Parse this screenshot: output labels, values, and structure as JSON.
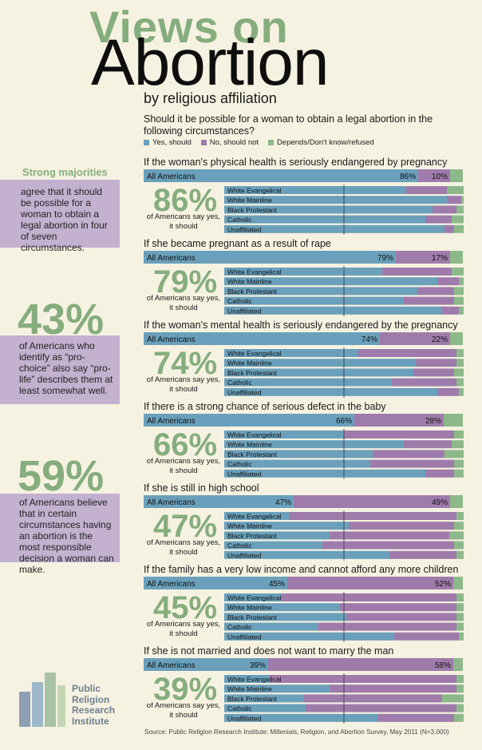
{
  "header": {
    "title_line1": "Views on",
    "title_line2": "Abortion",
    "subtitle": "by religious affiliation",
    "question": "Should it be possible for a woman to obtain a legal abortion in the following circumstances?"
  },
  "legend": {
    "yes": "Yes, should",
    "no": "No, should not",
    "depends": "Depends/Don't know/refused"
  },
  "colors": {
    "yes": "#6aa0bb",
    "no": "#9f7bab",
    "depends": "#8db98a",
    "accent_green": "#86ad7d",
    "side_box": "#c3b1cf",
    "background": "#f6f2e2"
  },
  "sidebar": {
    "fact1_head": "Strong majorities",
    "fact1_text": "agree that it should be possible for a woman to obtain a legal abortion in four of seven circumstances.",
    "fact2_pct": "43%",
    "fact2_text": "of Americans who identify as “pro-choice” also say “pro-life” describes them at least somewhat well.",
    "fact3_pct": "59%",
    "fact3_text": "of Americans believe that in certain circumstances having an abortion is the most responsible decision a woman can make."
  },
  "caption": "of Americans say yes, it should",
  "logo": {
    "line1": "Public",
    "line2": "Religion",
    "line3": "Research",
    "line4": "Institute"
  },
  "source": "Source: Public Religion Research Institute; Millenials, Religion, and Abortion Survey, May 2011 (N=3,000)",
  "chart_data": {
    "type": "bar",
    "stacked": true,
    "orientation": "horizontal",
    "stack_order": [
      "Yes, should",
      "No, should not",
      "Depends/Don't know/refused"
    ],
    "groups": [
      "White Evangelical",
      "White Mainline",
      "Black Protestant",
      "Catholic",
      "Unaffiliated"
    ],
    "total_label": "All Americans",
    "sections": [
      {
        "title": "If the woman's physical health is seriously endangered by pregnancy",
        "big": "86%",
        "all": {
          "yes": 86,
          "no": 10,
          "dep": 4,
          "yes_label": "86%",
          "no_label": "10%"
        },
        "rows": [
          {
            "yes": 76,
            "no": 17,
            "dep": 7
          },
          {
            "yes": 93,
            "no": 6,
            "dep": 1
          },
          {
            "yes": 87,
            "no": 10,
            "dep": 3
          },
          {
            "yes": 84,
            "no": 11,
            "dep": 5
          },
          {
            "yes": 92,
            "no": 4,
            "dep": 4
          }
        ]
      },
      {
        "title": "If she became pregnant as a result of rape",
        "big": "79%",
        "all": {
          "yes": 79,
          "no": 17,
          "dep": 4,
          "yes_label": "79%",
          "no_label": "17%"
        },
        "rows": [
          {
            "yes": 66,
            "no": 29,
            "dep": 5
          },
          {
            "yes": 89,
            "no": 9,
            "dep": 2
          },
          {
            "yes": 81,
            "no": 15,
            "dep": 4
          },
          {
            "yes": 75,
            "no": 21,
            "dep": 4
          },
          {
            "yes": 91,
            "no": 7,
            "dep": 2
          }
        ]
      },
      {
        "title": "If the woman's mental health is seriously endangered by the pregnancy",
        "big": "74%",
        "all": {
          "yes": 74,
          "no": 22,
          "dep": 4,
          "yes_label": "74%",
          "no_label": "22%"
        },
        "rows": [
          {
            "yes": 56,
            "no": 41,
            "dep": 3
          },
          {
            "yes": 80,
            "no": 17,
            "dep": 3
          },
          {
            "yes": 79,
            "no": 17,
            "dep": 4
          },
          {
            "yes": 70,
            "no": 27,
            "dep": 3
          },
          {
            "yes": 89,
            "no": 9,
            "dep": 2
          }
        ]
      },
      {
        "title": "If there is a strong chance of serious defect in the baby",
        "big": "66%",
        "all": {
          "yes": 66,
          "no": 28,
          "dep": 6,
          "yes_label": "66%",
          "no_label": "28%"
        },
        "rows": [
          {
            "yes": 50,
            "no": 46,
            "dep": 4
          },
          {
            "yes": 75,
            "no": 20,
            "dep": 5
          },
          {
            "yes": 62,
            "no": 30,
            "dep": 8
          },
          {
            "yes": 61,
            "no": 35,
            "dep": 4
          },
          {
            "yes": 84,
            "no": 12,
            "dep": 4
          }
        ]
      },
      {
        "title": "If she is still in high school",
        "big": "47%",
        "all": {
          "yes": 47,
          "no": 49,
          "dep": 4,
          "yes_label": "47%",
          "no_label": "49%"
        },
        "rows": [
          {
            "yes": 27,
            "no": 70,
            "dep": 3
          },
          {
            "yes": 52,
            "no": 44,
            "dep": 4
          },
          {
            "yes": 44,
            "no": 50,
            "dep": 6
          },
          {
            "yes": 41,
            "no": 55,
            "dep": 4
          },
          {
            "yes": 69,
            "no": 28,
            "dep": 3
          }
        ]
      },
      {
        "title": "If the family has a very low income and cannot afford any more children",
        "big": "45%",
        "all": {
          "yes": 45,
          "no": 52,
          "dep": 3,
          "yes_label": "45%",
          "no_label": "52%"
        },
        "rows": [
          {
            "yes": 24,
            "no": 73,
            "dep": 3
          },
          {
            "yes": 48,
            "no": 49,
            "dep": 3
          },
          {
            "yes": 51,
            "no": 46,
            "dep": 3
          },
          {
            "yes": 39,
            "no": 58,
            "dep": 3
          },
          {
            "yes": 71,
            "no": 27,
            "dep": 2
          }
        ]
      },
      {
        "title": "If she is not married and does not want to marry the man",
        "big": "39%",
        "all": {
          "yes": 39,
          "no": 58,
          "dep": 3,
          "yes_label": "39%",
          "no_label": "58%"
        },
        "rows": [
          {
            "yes": 19,
            "no": 78,
            "dep": 3
          },
          {
            "yes": 44,
            "no": 53,
            "dep": 3
          },
          {
            "yes": 33,
            "no": 58,
            "dep": 9
          },
          {
            "yes": 34,
            "no": 63,
            "dep": 3
          },
          {
            "yes": 64,
            "no": 32,
            "dep": 4
          }
        ]
      }
    ]
  }
}
